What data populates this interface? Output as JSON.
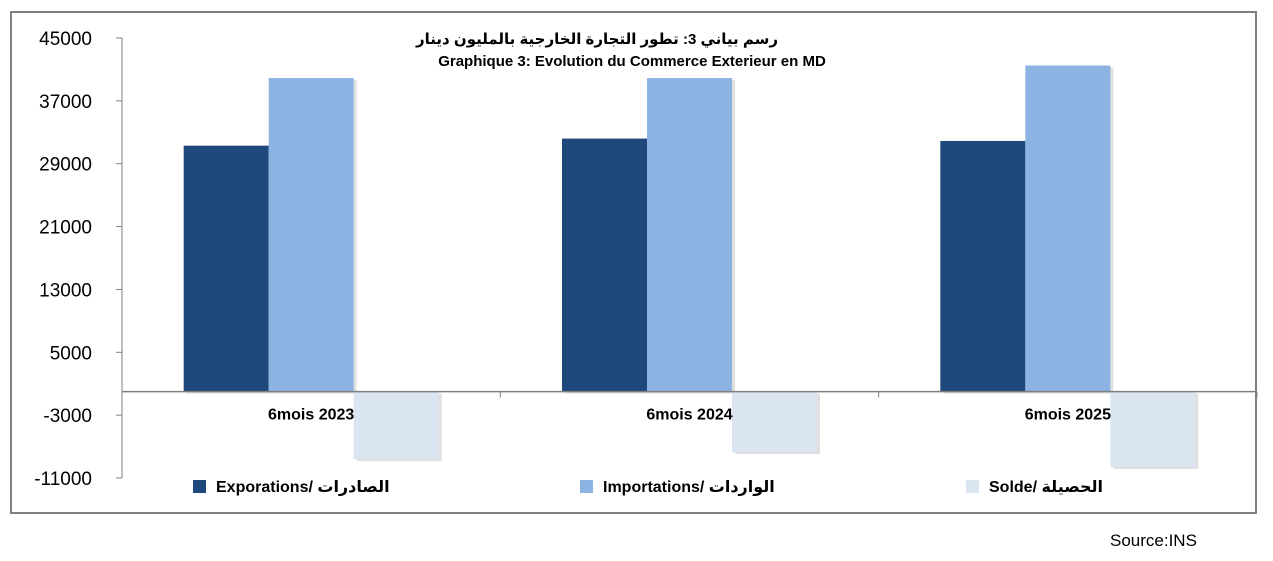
{
  "chart_data": {
    "type": "bar",
    "title": "رسم بياني 3: تطور التجارة الخارجية بالمليون دينار",
    "subtitle": "Graphique 3: Evolution du Commerce Exterieur en MD",
    "categories": [
      "6mois 2023",
      "6mois 2024",
      "6mois 2025"
    ],
    "series": [
      {
        "name": "Exporations/ الصادرات",
        "values": [
          31300,
          32200,
          31900
        ],
        "color": "#1f497d"
      },
      {
        "name": "Importations/ الواردات",
        "values": [
          39900,
          39900,
          41500
        ],
        "color": "#8db3e2"
      },
      {
        "name": "Solde/ الحصيلة",
        "values": [
          -8600,
          -7700,
          -9600
        ],
        "color": "#dbe5f1"
      }
    ],
    "y_ticks": [
      "45000",
      "37000",
      "29000",
      "21000",
      "13000",
      "5000",
      "-3000",
      "-11000"
    ],
    "y_tick_values": [
      45000,
      37000,
      29000,
      21000,
      13000,
      5000,
      -3000,
      -11000
    ],
    "ylim": [
      -11000,
      45000
    ],
    "grid": false,
    "legend_position": "bottom"
  },
  "source": "Source:INS"
}
